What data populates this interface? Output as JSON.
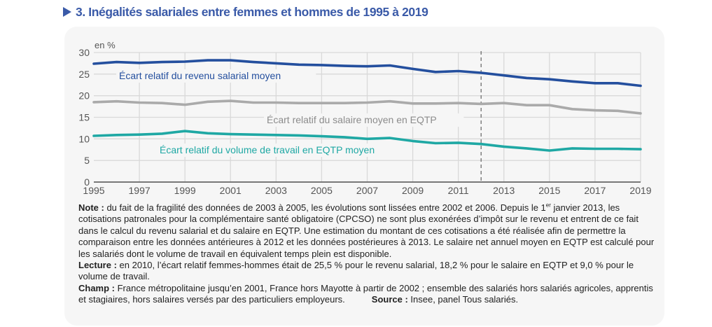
{
  "title": "3. Inégalités salariales entre femmes et hommes de 1995 à 2019",
  "chart_data": {
    "type": "line",
    "title": "3. Inégalités salariales entre femmes et hommes de 1995 à 2019",
    "ylabel": "en %",
    "xlabel": "",
    "ylim": [
      0,
      30
    ],
    "yticks": [
      0,
      5,
      10,
      15,
      20,
      25,
      30
    ],
    "xlim": [
      1995,
      2019
    ],
    "xticks": [
      1995,
      1997,
      1999,
      2001,
      2003,
      2005,
      2007,
      2009,
      2011,
      2013,
      2015,
      2017,
      2019
    ],
    "grid": true,
    "reference_line": {
      "x": 2012,
      "style": "dashed"
    },
    "x": [
      1995,
      1996,
      1997,
      1998,
      1999,
      2000,
      2001,
      2002,
      2003,
      2004,
      2005,
      2006,
      2007,
      2008,
      2009,
      2010,
      2011,
      2012,
      2013,
      2014,
      2015,
      2016,
      2017,
      2018,
      2019
    ],
    "series": [
      {
        "name": "Écart relatif du revenu salarial moyen",
        "color": "#244f9e",
        "values": [
          27.4,
          27.8,
          27.6,
          27.8,
          27.9,
          28.2,
          28.2,
          27.8,
          27.5,
          27.2,
          27.1,
          26.9,
          26.8,
          27.0,
          26.2,
          25.5,
          25.7,
          25.3,
          24.7,
          24.1,
          23.8,
          23.3,
          22.9,
          22.9,
          22.3
        ]
      },
      {
        "name": "Écart relatif du salaire moyen en EQTP",
        "color": "#aaaaaa",
        "values": [
          18.5,
          18.7,
          18.4,
          18.3,
          17.9,
          18.6,
          18.8,
          18.4,
          18.4,
          18.3,
          18.3,
          18.3,
          18.4,
          18.7,
          18.2,
          18.2,
          18.3,
          18.1,
          18.3,
          17.8,
          17.8,
          16.9,
          16.6,
          16.5,
          15.9
        ]
      },
      {
        "name": "Écart relatif du volume de travail en EQTP moyen",
        "color": "#1fa8a4",
        "values": [
          10.7,
          10.9,
          11.0,
          11.2,
          11.8,
          11.3,
          11.1,
          11.0,
          10.9,
          10.8,
          10.6,
          10.4,
          10.0,
          10.2,
          9.5,
          9.0,
          9.1,
          8.8,
          8.2,
          7.8,
          7.3,
          7.8,
          7.7,
          7.7,
          7.6
        ]
      }
    ]
  },
  "notes": {
    "note_label": "Note :",
    "note_text_1": " du fait de la fragilité des données de 2003 à 2005, les évolutions sont lissées entre 2002 et 2006. Depuis le 1",
    "note_sup": "er",
    "note_text_2": " janvier 2013, les cotisations patronales pour la complémentaire santé obligatoire (CPCSO) ne sont plus exonérées d’impôt sur le revenu et entrent de ce fait dans le calcul du revenu salarial et du salaire en EQTP. Une estimation du montant de ces cotisations a été réalisée afin de permettre la comparaison entre les données antérieures à 2012 et les données postérieures à 2013. Le salaire net annuel moyen en EQTP est calculé pour les salariés dont le volume de travail en équivalent temps plein est disponible.",
    "lecture_label": "Lecture :",
    "lecture_text": " en 2010, l’écart relatif femmes-hommes était de 25,5 % pour le revenu salarial, 18,2 % pour le salaire en EQTP et 9,0 % pour le volume de travail.",
    "champ_label": "Champ :",
    "champ_text": " France métropolitaine jusqu’en 2001, France hors Mayotte à partir de 2002 ; ensemble des salariés hors salariés agricoles, apprentis et stagiaires, hors salaires versés par des particuliers employeurs.",
    "source_label": "Source :",
    "source_text": " Insee, panel Tous salariés."
  }
}
